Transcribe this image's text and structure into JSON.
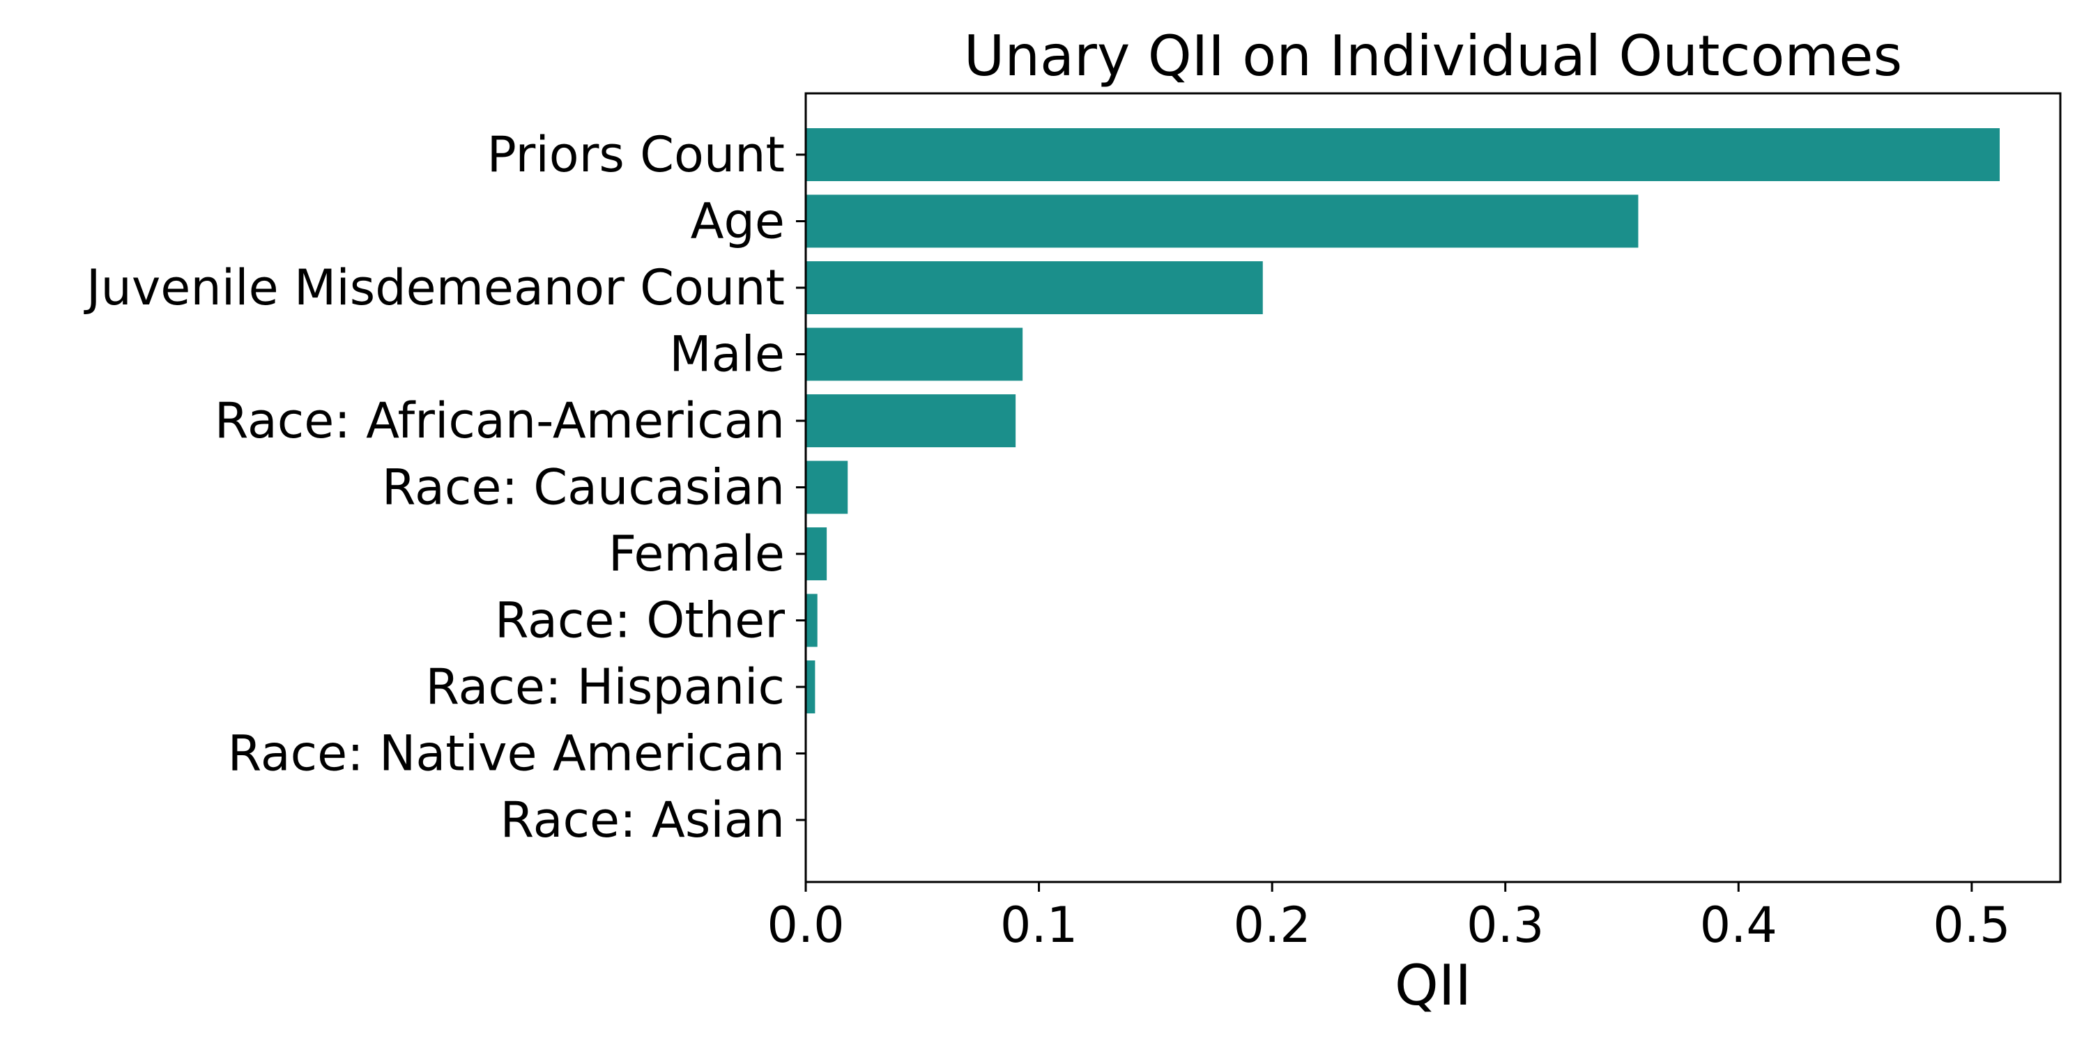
{
  "chart_data": {
    "type": "bar",
    "orientation": "horizontal",
    "title": "Unary QII on Individual Outcomes",
    "xlabel": "QII",
    "ylabel": "",
    "categories": [
      "Priors Count",
      "Age",
      "Juvenile Misdemeanor Count",
      "Male",
      "Race: African-American",
      "Race: Caucasian",
      "Female",
      "Race: Other",
      "Race: Hispanic",
      "Race: Native American",
      "Race: Asian"
    ],
    "values": [
      0.512,
      0.357,
      0.196,
      0.093,
      0.09,
      0.018,
      0.009,
      0.005,
      0.004,
      0.0,
      0.0
    ],
    "xlim": [
      0,
      0.538
    ],
    "xticks": [
      "0.0",
      "0.1",
      "0.2",
      "0.3",
      "0.4",
      "0.5"
    ],
    "bar_color": "#1b8f8b",
    "grid": false,
    "legend": "none"
  }
}
